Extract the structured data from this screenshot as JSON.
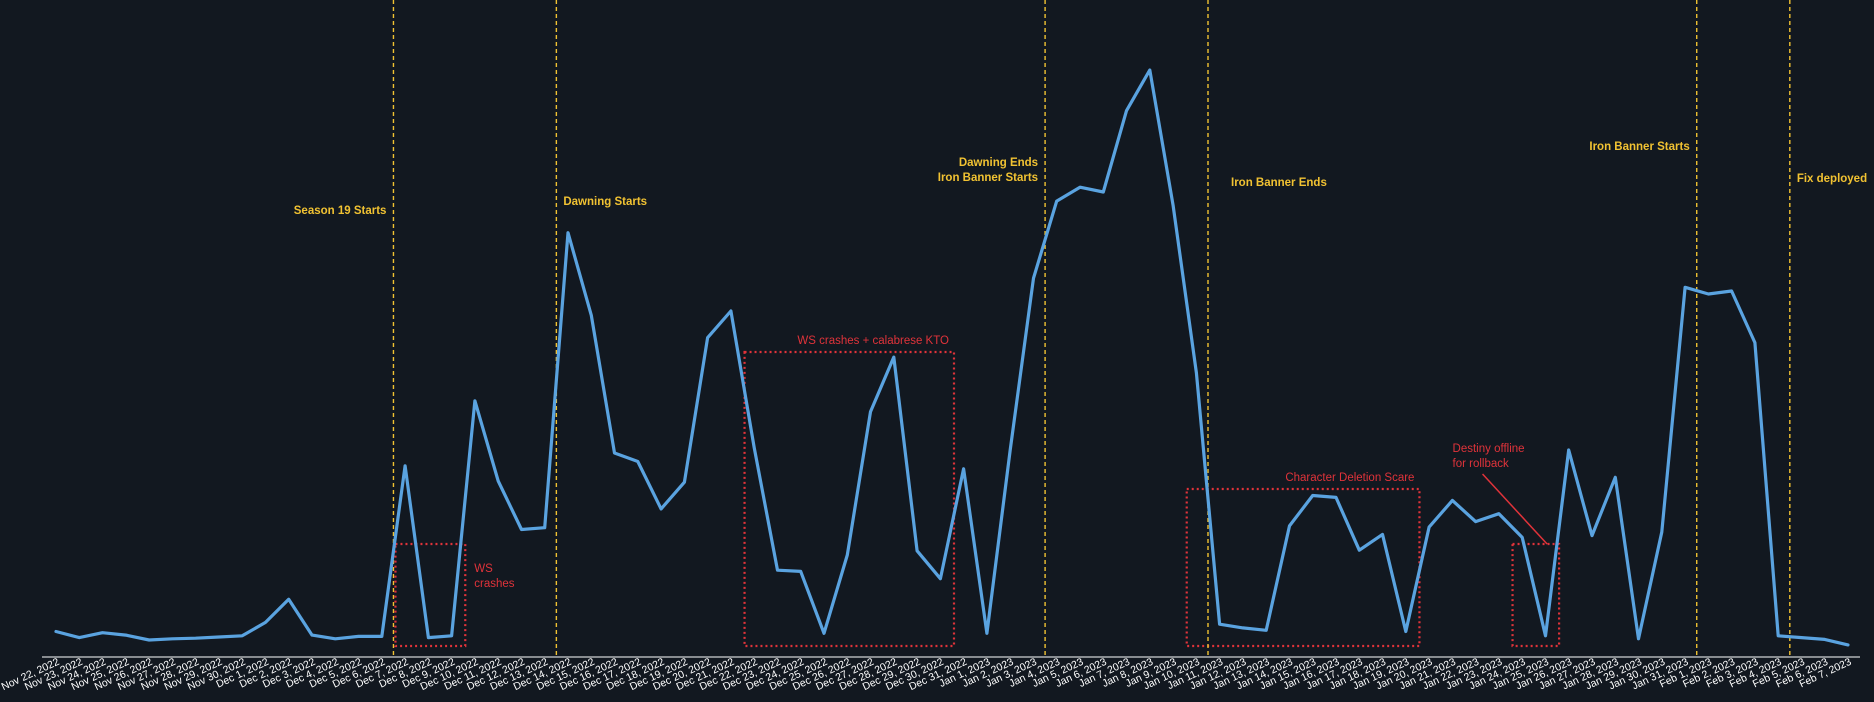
{
  "chart_data": {
    "type": "line",
    "title": "",
    "xlabel": "",
    "ylabel": "",
    "grid": false,
    "colors": {
      "background": "#121820",
      "line": "#5aa3e0",
      "event": "#f1c232",
      "annotation": "#e0333a",
      "axis": "#ffffff"
    },
    "ylim": [
      0,
      100
    ],
    "x": [
      "Nov 22, 2022",
      "Nov 23, 2022",
      "Nov 24, 2022",
      "Nov 25, 2022",
      "Nov 26, 2022",
      "Nov 27, 2022",
      "Nov 28, 2022",
      "Nov 29, 2022",
      "Nov 30, 2022",
      "Dec 1, 2022",
      "Dec 2, 2022",
      "Dec 3, 2022",
      "Dec 4, 2022",
      "Dec 5, 2022",
      "Dec 6, 2022",
      "Dec 7, 2022",
      "Dec 8, 2022",
      "Dec 9, 2022",
      "Dec 10, 2022",
      "Dec 11, 2022",
      "Dec 12, 2022",
      "Dec 13, 2022",
      "Dec 14, 2022",
      "Dec 15, 2022",
      "Dec 16, 2022",
      "Dec 17, 2022",
      "Dec 18, 2022",
      "Dec 19, 2022",
      "Dec 20, 2022",
      "Dec 21, 2022",
      "Dec 22, 2022",
      "Dec 23, 2022",
      "Dec 24, 2022",
      "Dec 25, 2022",
      "Dec 26, 2022",
      "Dec 27, 2022",
      "Dec 28, 2022",
      "Dec 29, 2022",
      "Dec 30, 2022",
      "Dec 31, 2022",
      "Jan 1, 2023",
      "Jan 2, 2023",
      "Jan 3, 2023",
      "Jan 4, 2023",
      "Jan 5, 2023",
      "Jan 6, 2023",
      "Jan 7, 2023",
      "Jan 8, 2023",
      "Jan 9, 2023",
      "Jan 10, 2023",
      "Jan 11, 2023",
      "Jan 12, 2023",
      "Jan 13, 2023",
      "Jan 14, 2023",
      "Jan 15, 2023",
      "Jan 16, 2023",
      "Jan 17, 2023",
      "Jan 18, 2023",
      "Jan 19, 2023",
      "Jan 20, 2023",
      "Jan 21, 2023",
      "Jan 22, 2023",
      "Jan 23, 2023",
      "Jan 24, 2023",
      "Jan 25, 2023",
      "Jan 26, 2023",
      "Jan 27, 2023",
      "Jan 28, 2023",
      "Jan 29, 2023",
      "Jan 30, 2023",
      "Jan 31, 2023",
      "Feb 1, 2023",
      "Feb 2, 2023",
      "Feb 3, 2023",
      "Feb 4, 2023",
      "Feb 5, 2023",
      "Feb 6, 2023",
      "Feb 7, 2023"
    ],
    "series": [
      {
        "values": [
          4.2,
          3.2,
          4.0,
          3.6,
          2.8,
          3.0,
          3.1,
          3.3,
          3.5,
          5.7,
          9.5,
          3.6,
          3.0,
          3.4,
          3.4,
          31.5,
          3.2,
          3.5,
          42.2,
          29.0,
          21.0,
          21.3,
          69.9,
          56.3,
          33.6,
          32.2,
          24.4,
          28.8,
          52.6,
          57.0,
          34.5,
          14.3,
          14.1,
          3.9,
          16.8,
          40.4,
          49.4,
          17.5,
          12.9,
          31.0,
          3.9,
          34.1,
          62.4,
          75.1,
          77.4,
          76.6,
          90.0,
          96.7,
          74.4,
          46.8,
          5.4,
          4.8,
          4.4,
          21.6,
          26.6,
          26.3,
          17.6,
          20.2,
          4.2,
          21.4,
          25.8,
          22.3,
          23.6,
          19.7,
          3.5,
          34.1,
          20.0,
          29.6,
          3.0,
          20.6,
          60.9,
          59.8,
          60.3,
          51.8,
          3.5,
          3.2,
          2.9,
          2.0
        ]
      }
    ],
    "events": [
      {
        "x": "Dec 6, 2022",
        "label": [
          "Season 19 Starts"
        ]
      },
      {
        "x": "Dec 13, 2022",
        "label": [
          "Dawning Starts"
        ]
      },
      {
        "x": "Jan 3, 2023",
        "label": [
          "Dawning Ends",
          "Iron Banner Starts"
        ]
      },
      {
        "x": "Jan 10, 2023",
        "label": [
          "Iron Banner Ends"
        ]
      },
      {
        "x": "Jan 31, 2023",
        "label": [
          "Iron Banner Starts"
        ]
      },
      {
        "x": "Feb 4, 2023",
        "label": [
          "Fix deployed"
        ]
      }
    ],
    "annotations": [
      {
        "x_range": [
          "Dec 7, 2022",
          "Dec 9, 2022"
        ],
        "label": [
          "WS",
          "crashes"
        ]
      },
      {
        "x_range": [
          "Dec 22, 2022",
          "Dec 30, 2022"
        ],
        "label": [
          "WS crashes + calabrese KTO"
        ]
      },
      {
        "x_range": [
          "Jan 10, 2023",
          "Jan 19, 2023"
        ],
        "label": [
          "Character Deletion Scare"
        ]
      },
      {
        "x_range": [
          "Jan 24, 2023",
          "Jan 25, 2023"
        ],
        "label": [
          "Destiny offline",
          "for rollback"
        ]
      }
    ]
  }
}
